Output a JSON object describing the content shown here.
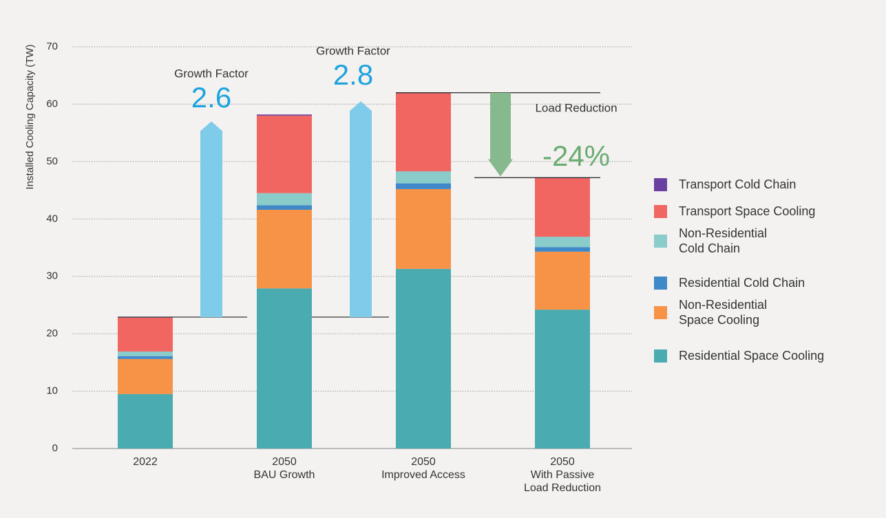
{
  "chart_data": {
    "type": "stacked_bar",
    "y_label": "Installed Cooling Capacity (TW)",
    "categories": [
      "2022",
      "2050\nBAU Growth",
      "2050\nImproved Access",
      "2050\nWith Passive\nLoad Reduction"
    ],
    "series": [
      {
        "name": "Residential Space Cooling",
        "color": "#4aabb1",
        "values": [
          9.5,
          27.9,
          31.3,
          24.2
        ]
      },
      {
        "name": "Non-Residential\nSpace Cooling",
        "color": "#f79346",
        "values": [
          6.1,
          13.7,
          13.9,
          10.1
        ]
      },
      {
        "name": "Residential Cold Chain",
        "color": "#3f88c9",
        "values": [
          0.5,
          0.8,
          1.0,
          0.8
        ]
      },
      {
        "name": "Non-Residential\nCold Chain",
        "color": "#8accca",
        "values": [
          0.8,
          2.1,
          2.1,
          1.8
        ]
      },
      {
        "name": "Transport Space Cooling",
        "color": "#f16661",
        "values": [
          5.9,
          13.5,
          13.6,
          10.2
        ]
      },
      {
        "name": "Transport Cold Chain",
        "color": "#6a40a0",
        "values": [
          0.1,
          0.2,
          0.1,
          0.1
        ]
      }
    ],
    "ylim": [
      0,
      70
    ],
    "yticks": [
      0,
      10,
      20,
      30,
      40,
      50,
      60,
      70
    ],
    "grid": true,
    "legend": "right",
    "annotations": [
      {
        "text": "Growth Factor",
        "value": 2.6
      },
      {
        "text": "Growth Factor",
        "value": 2.8
      },
      {
        "text": "Load Reduction",
        "value": -24,
        "value_label": "-24%"
      }
    ]
  }
}
